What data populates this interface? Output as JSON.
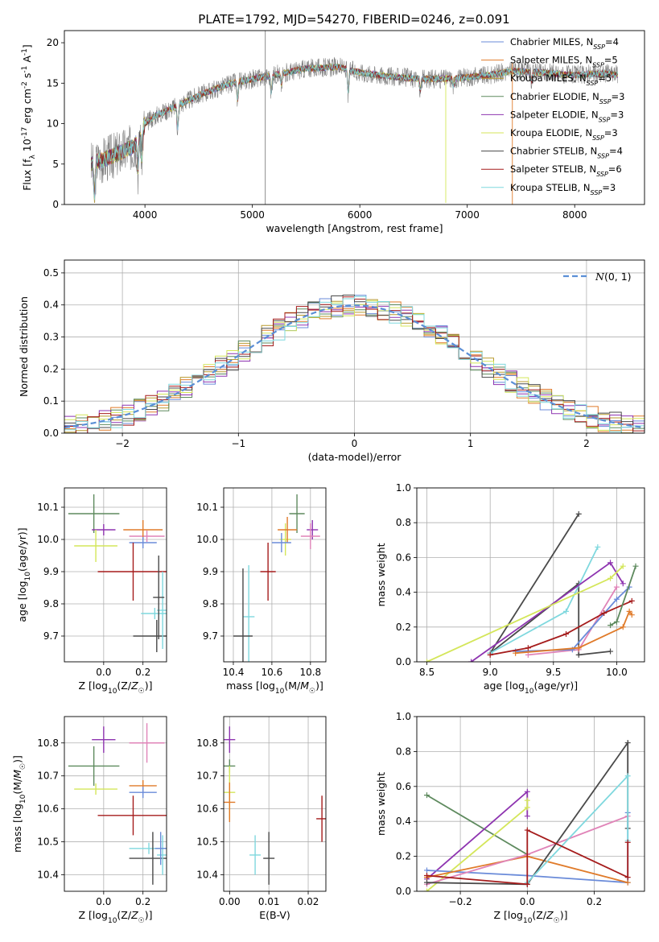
{
  "figure": {
    "title": "PLATE=1792, MJD=54270, FIBERID=0246, z=0.091"
  },
  "colors": {
    "Chabrier MILES": "#6a8bd9",
    "Salpeter MILES": "#e07b2a",
    "Kroupa MILES": "#b89a2f",
    "Chabrier ELODIE": "#5e8a5e",
    "Salpeter ELODIE": "#8e34b0",
    "Kroupa ELODIE": "#d4e65a",
    "Chabrier STELIB": "#4a4a4a",
    "Salpeter STELIB": "#a51c1c",
    "Kroupa STELIB": "#7fd8de",
    "extra_pink": "#e084b8",
    "observed": "#808080"
  },
  "chart_data": [
    {
      "id": "spectrum",
      "type": "line",
      "xlabel": "wavelength [Angstrom, rest frame]",
      "ylabel": "Flux [f_λ 10^-17 erg cm^-2 s^-1 A^-1]",
      "xlim": [
        3250,
        8650
      ],
      "ylim": [
        0,
        21.5
      ],
      "xticks": [
        4000,
        5000,
        6000,
        7000,
        8000
      ],
      "yticks": [
        0,
        5,
        10,
        15,
        20
      ],
      "legend_position": "right",
      "grid": false,
      "legend": [
        {
          "label": "Chabrier MILES, N",
          "sub": "SSP",
          "suffix": "=4",
          "color_key": "Chabrier MILES"
        },
        {
          "label": "Salpeter MILES, N",
          "sub": "SSP",
          "suffix": "=5",
          "color_key": "Salpeter MILES"
        },
        {
          "label": "Kroupa MILES, N",
          "sub": "SSP",
          "suffix": "=5",
          "color_key": "Kroupa MILES"
        },
        {
          "label": "Chabrier ELODIE, N",
          "sub": "SSP",
          "suffix": "=3",
          "color_key": "Chabrier ELODIE"
        },
        {
          "label": "Salpeter ELODIE, N",
          "sub": "SSP",
          "suffix": "=3",
          "color_key": "Salpeter ELODIE"
        },
        {
          "label": "Kroupa ELODIE, N",
          "sub": "SSP",
          "suffix": "=3",
          "color_key": "Kroupa ELODIE"
        },
        {
          "label": "Chabrier STELIB, N",
          "sub": "SSP",
          "suffix": "=4",
          "color_key": "Chabrier STELIB"
        },
        {
          "label": "Salpeter STELIB, N",
          "sub": "SSP",
          "suffix": "=6",
          "color_key": "Salpeter STELIB"
        },
        {
          "label": "Kroupa STELIB, N",
          "sub": "SSP",
          "suffix": "=3",
          "color_key": "Kroupa STELIB"
        }
      ],
      "continuum": {
        "wavelength": [
          3500,
          3700,
          3900,
          4000,
          4100,
          4300,
          4500,
          4800,
          5000,
          5200,
          5500,
          5800,
          6000,
          6300,
          6600,
          6900,
          7200,
          7420,
          7700,
          8000,
          8300,
          8400
        ],
        "flux": [
          5.0,
          6.0,
          7.2,
          10.0,
          11.0,
          12.2,
          13.5,
          15.0,
          15.5,
          16.0,
          16.8,
          17.0,
          16.3,
          15.8,
          15.5,
          15.6,
          16.0,
          16.5,
          16.3,
          16.0,
          16.2,
          16.0
        ]
      },
      "absorption_features": [
        {
          "wavelength": 3530,
          "depth": 4.5
        },
        {
          "wavelength": 3935,
          "depth": 4.0
        },
        {
          "wavelength": 3970,
          "depth": 3.5
        },
        {
          "wavelength": 4305,
          "depth": 3.0
        },
        {
          "wavelength": 4862,
          "depth": 2.5
        },
        {
          "wavelength": 5175,
          "depth": 2.2
        },
        {
          "wavelength": 5270,
          "depth": 1.5
        },
        {
          "wavelength": 5892,
          "depth": 3.0
        },
        {
          "wavelength": 6563,
          "depth": 1.5
        },
        {
          "wavelength": 6870,
          "depth": 1.0
        },
        {
          "wavelength": 7600,
          "depth": 1.2
        }
      ],
      "spikes": [
        {
          "wavelength": 5120,
          "flux_low": 0.0,
          "flux_high": 21.5,
          "color_key": "observed"
        },
        {
          "wavelength": 6800,
          "flux_low": 0.2,
          "flux_high": 16.0,
          "color_key": "Kroupa ELODIE"
        },
        {
          "wavelength": 7420,
          "flux_low": 0.0,
          "flux_high": 17.5,
          "color_key": "Salpeter MILES"
        }
      ]
    },
    {
      "id": "residual-histogram",
      "type": "bar",
      "xlabel": "(data-model)/error",
      "ylabel": "Normed distribution",
      "xlim": [
        -2.5,
        2.5
      ],
      "ylim": [
        0,
        0.54
      ],
      "xticks": [
        -2,
        -1,
        0,
        1,
        2
      ],
      "yticks": [
        0.0,
        0.1,
        0.2,
        0.3,
        0.4,
        0.5
      ],
      "grid": true,
      "bin_width": 0.1,
      "legend_position": "top-right",
      "gaussian_label": "N(0,1)",
      "series": [
        {
          "name": "Chabrier MILES",
          "seed": 1
        },
        {
          "name": "Salpeter MILES",
          "seed": 2
        },
        {
          "name": "Kroupa MILES",
          "seed": 3
        },
        {
          "name": "Chabrier ELODIE",
          "seed": 4
        },
        {
          "name": "Salpeter ELODIE",
          "seed": 5
        },
        {
          "name": "Kroupa ELODIE",
          "seed": 6
        },
        {
          "name": "Chabrier STELIB",
          "seed": 7
        },
        {
          "name": "Salpeter STELIB",
          "seed": 8
        },
        {
          "name": "Kroupa STELIB",
          "seed": 9
        }
      ]
    },
    {
      "id": "age-vs-z",
      "type": "scatter",
      "xlabel": "Z [log10(Z/Z☉)]",
      "ylabel": "age  [log10(age/yr)]",
      "xlim": [
        -0.2,
        0.32
      ],
      "ylim": [
        9.62,
        10.16
      ],
      "xticks": [
        0.0,
        0.2
      ],
      "yticks": [
        9.7,
        9.8,
        9.9,
        10.0,
        10.1
      ],
      "grid": true,
      "points": [
        {
          "x": -0.05,
          "y": 10.08,
          "xerr": 0.13,
          "yerr": 0.06,
          "color_key": "Chabrier ELODIE"
        },
        {
          "x": 0.0,
          "y": 10.03,
          "xerr": 0.06,
          "yerr": 0.0,
          "color_key": "Salpeter ELODIE"
        },
        {
          "x": -0.04,
          "y": 9.98,
          "xerr": 0.11,
          "yerr": 0.05,
          "color_key": "Kroupa ELODIE"
        },
        {
          "x": 0.22,
          "y": 10.01,
          "xerr": 0.09,
          "yerr": 0.0,
          "color_key": "extra_pink"
        },
        {
          "x": 0.2,
          "y": 10.03,
          "xerr": 0.1,
          "yerr": 0.03,
          "color_key": "Salpeter MILES"
        },
        {
          "x": 0.2,
          "y": 9.99,
          "xerr": 0.07,
          "yerr": 0.0,
          "color_key": "Chabrier MILES"
        },
        {
          "x": 0.15,
          "y": 9.9,
          "xerr": 0.18,
          "yerr": 0.09,
          "color_key": "Salpeter STELIB"
        },
        {
          "x": 0.26,
          "y": 9.77,
          "xerr": 0.07,
          "yerr": 0.0,
          "color_key": "Kroupa STELIB"
        },
        {
          "x": 0.27,
          "y": 9.7,
          "xerr": 0.12,
          "yerr": 0.05,
          "color_key": "Chabrier STELIB"
        },
        {
          "x": 0.3,
          "y": 9.78,
          "xerr": 0.0,
          "yerr": 0.12,
          "color_key": "Kroupa STELIB"
        },
        {
          "x": 0.28,
          "y": 9.82,
          "xerr": 0.0,
          "yerr": 0.13,
          "color_key": "Chabrier STELIB"
        }
      ]
    },
    {
      "id": "age-vs-mass",
      "type": "scatter",
      "xlabel": "mass [log10(M/M☉)]",
      "ylabel": "",
      "xlim": [
        10.35,
        10.88
      ],
      "ylim": [
        9.62,
        10.16
      ],
      "xticks": [
        10.4,
        10.6,
        10.8
      ],
      "yticks": [
        9.7,
        9.8,
        9.9,
        10.0,
        10.1
      ],
      "grid": true,
      "points": [
        {
          "x": 10.73,
          "y": 10.08,
          "xerr": 0.04,
          "yerr": 0.06,
          "color_key": "Chabrier ELODIE"
        },
        {
          "x": 10.81,
          "y": 10.03,
          "xerr": 0.02,
          "yerr": 0.03,
          "color_key": "Salpeter ELODIE"
        },
        {
          "x": 10.67,
          "y": 10.0,
          "xerr": 0.03,
          "yerr": 0.05,
          "color_key": "Kroupa ELODIE"
        },
        {
          "x": 10.8,
          "y": 10.01,
          "xerr": 0.05,
          "yerr": 0.04,
          "color_key": "extra_pink"
        },
        {
          "x": 10.68,
          "y": 10.03,
          "xerr": 0.05,
          "yerr": 0.04,
          "color_key": "Salpeter MILES"
        },
        {
          "x": 10.65,
          "y": 9.99,
          "xerr": 0.05,
          "yerr": 0.03,
          "color_key": "Chabrier MILES"
        },
        {
          "x": 10.58,
          "y": 9.9,
          "xerr": 0.04,
          "yerr": 0.09,
          "color_key": "Salpeter STELIB"
        },
        {
          "x": 10.48,
          "y": 9.76,
          "xerr": 0.03,
          "yerr": 0.16,
          "color_key": "Kroupa STELIB"
        },
        {
          "x": 10.45,
          "y": 9.7,
          "xerr": 0.05,
          "yerr": 0.21,
          "color_key": "Chabrier STELIB"
        }
      ]
    },
    {
      "id": "mass-weight-vs-age",
      "type": "line",
      "xlabel": "age  [log10(age/yr)]",
      "ylabel": "mass weight",
      "xlim": [
        8.42,
        10.22
      ],
      "ylim": [
        0,
        1
      ],
      "xticks": [
        8.5,
        9.0,
        9.5,
        10.0
      ],
      "yticks": [
        0.0,
        0.2,
        0.4,
        0.6,
        0.8,
        1.0
      ],
      "grid": true,
      "series": [
        {
          "color_key": "Chabrier STELIB",
          "x": [
            9.7,
            9.0,
            9.7,
            9.7,
            9.95
          ],
          "y": [
            0.85,
            0.05,
            0.45,
            0.04,
            0.06
          ]
        },
        {
          "color_key": "Kroupa STELIB",
          "x": [
            9.0,
            9.6,
            9.85
          ],
          "y": [
            0.05,
            0.29,
            0.66
          ]
        },
        {
          "color_key": "Salpeter ELODIE",
          "x": [
            8.85,
            9.95,
            10.05
          ],
          "y": [
            0.0,
            0.57,
            0.45
          ]
        },
        {
          "color_key": "Kroupa ELODIE",
          "x": [
            8.5,
            9.95,
            10.05
          ],
          "y": [
            0.0,
            0.48,
            0.55
          ]
        },
        {
          "color_key": "extra_pink",
          "x": [
            9.3,
            9.7,
            10.0
          ],
          "y": [
            0.04,
            0.07,
            0.43
          ]
        },
        {
          "color_key": "Chabrier MILES",
          "x": [
            9.2,
            9.65,
            10.0,
            10.1
          ],
          "y": [
            0.06,
            0.07,
            0.36,
            0.43
          ]
        },
        {
          "color_key": "Salpeter MILES",
          "x": [
            9.2,
            9.7,
            10.05,
            10.1,
            10.12
          ],
          "y": [
            0.05,
            0.08,
            0.2,
            0.29,
            0.27
          ]
        },
        {
          "color_key": "Salpeter STELIB",
          "x": [
            9.0,
            9.3,
            9.6,
            9.9,
            10.12
          ],
          "y": [
            0.04,
            0.08,
            0.16,
            0.28,
            0.35
          ]
        },
        {
          "color_key": "Chabrier ELODIE",
          "x": [
            9.95,
            10.0,
            10.15
          ],
          "y": [
            0.21,
            0.23,
            0.55
          ]
        }
      ]
    },
    {
      "id": "mass-vs-z",
      "type": "scatter",
      "xlabel": "Z [log10(Z/Z☉)]",
      "ylabel": "mass [log10(M/M☉)]",
      "xlim": [
        -0.2,
        0.32
      ],
      "ylim": [
        10.35,
        10.88
      ],
      "xticks": [
        0.0,
        0.2
      ],
      "yticks": [
        10.4,
        10.5,
        10.6,
        10.7,
        10.8
      ],
      "grid": true,
      "points": [
        {
          "x": -0.05,
          "y": 10.73,
          "xerr": 0.13,
          "yerr": 0.06,
          "color_key": "Chabrier ELODIE"
        },
        {
          "x": 0.0,
          "y": 10.81,
          "xerr": 0.06,
          "yerr": 0.04,
          "color_key": "Salpeter ELODIE"
        },
        {
          "x": -0.04,
          "y": 10.66,
          "xerr": 0.11,
          "yerr": 0.0,
          "color_key": "Kroupa ELODIE"
        },
        {
          "x": 0.22,
          "y": 10.8,
          "xerr": 0.09,
          "yerr": 0.06,
          "color_key": "extra_pink"
        },
        {
          "x": 0.2,
          "y": 10.67,
          "xerr": 0.07,
          "yerr": 0.0,
          "color_key": "Salpeter MILES"
        },
        {
          "x": 0.2,
          "y": 10.65,
          "xerr": 0.07,
          "yerr": 0.0,
          "color_key": "Chabrier MILES"
        },
        {
          "x": 0.15,
          "y": 10.58,
          "xerr": 0.18,
          "yerr": 0.06,
          "color_key": "Salpeter STELIB"
        },
        {
          "x": 0.23,
          "y": 10.48,
          "xerr": 0.1,
          "yerr": 0.0,
          "color_key": "Kroupa STELIB"
        },
        {
          "x": 0.25,
          "y": 10.45,
          "xerr": 0.12,
          "yerr": 0.08,
          "color_key": "Chabrier STELIB"
        },
        {
          "x": 0.3,
          "y": 10.46,
          "xerr": 0.0,
          "yerr": 0.06,
          "color_key": "Kroupa STELIB"
        },
        {
          "x": 0.29,
          "y": 10.48,
          "xerr": 0.0,
          "yerr": 0.05,
          "color_key": "Chabrier MILES"
        }
      ]
    },
    {
      "id": "mass-vs-ebv",
      "type": "scatter",
      "xlabel": "E(B-V)",
      "ylabel": "",
      "xlim": [
        -0.0015,
        0.0245
      ],
      "ylim": [
        10.35,
        10.88
      ],
      "xticks": [
        0.0,
        0.01,
        0.02
      ],
      "yticks": [
        10.4,
        10.5,
        10.6,
        10.7,
        10.8
      ],
      "grid": true,
      "points": [
        {
          "x": 0.0,
          "y": 10.81,
          "xerr": 0.0,
          "yerr": 0.04,
          "color_key": "Salpeter ELODIE"
        },
        {
          "x": 0.0,
          "y": 10.73,
          "xerr": 0.0,
          "yerr": 0.02,
          "color_key": "Chabrier ELODIE"
        },
        {
          "x": 0.0,
          "y": 10.65,
          "xerr": 0.0,
          "yerr": 0.08,
          "color_key": "Kroupa ELODIE"
        },
        {
          "x": 0.0,
          "y": 10.62,
          "xerr": 0.0,
          "yerr": 0.06,
          "color_key": "Salpeter MILES"
        },
        {
          "x": 0.0065,
          "y": 10.46,
          "xerr": 0.0,
          "yerr": 0.06,
          "color_key": "Kroupa STELIB"
        },
        {
          "x": 0.01,
          "y": 10.45,
          "xerr": 0.0,
          "yerr": 0.08,
          "color_key": "Chabrier STELIB"
        },
        {
          "x": 0.0235,
          "y": 10.57,
          "xerr": 0.0,
          "yerr": 0.07,
          "color_key": "Salpeter STELIB"
        }
      ]
    },
    {
      "id": "mass-weight-vs-z",
      "type": "line",
      "xlabel": "Z [log10(Z/Z☉)]",
      "ylabel": "mass weight",
      "xlim": [
        -0.33,
        0.35
      ],
      "ylim": [
        0,
        1
      ],
      "xticks": [
        -0.2,
        0.0,
        0.2
      ],
      "yticks": [
        0.0,
        0.2,
        0.4,
        0.6,
        0.8,
        1.0
      ],
      "grid": true,
      "series": [
        {
          "color_key": "Chabrier ELODIE",
          "x": [
            -0.3,
            0.0
          ],
          "y": [
            0.55,
            0.21
          ]
        },
        {
          "color_key": "Salpeter ELODIE",
          "x": [
            -0.3,
            0.0,
            0.0
          ],
          "y": [
            0.07,
            0.57,
            0.43
          ]
        },
        {
          "color_key": "Kroupa ELODIE",
          "x": [
            -0.3,
            0.0,
            0.0
          ],
          "y": [
            0.0,
            0.48,
            0.52
          ]
        },
        {
          "color_key": "Chabrier MILES",
          "x": [
            -0.3,
            0.0,
            0.3,
            0.3
          ],
          "y": [
            0.12,
            0.09,
            0.05,
            0.45
          ]
        },
        {
          "color_key": "Salpeter MILES",
          "x": [
            -0.3,
            0.0,
            0.3
          ],
          "y": [
            0.08,
            0.2,
            0.05
          ]
        },
        {
          "color_key": "extra_pink",
          "x": [
            -0.3,
            0.0,
            0.3
          ],
          "y": [
            0.04,
            0.21,
            0.43
          ]
        },
        {
          "color_key": "Chabrier STELIB",
          "x": [
            -0.3,
            0.0,
            0.3,
            0.3
          ],
          "y": [
            0.05,
            0.04,
            0.85,
            0.36
          ]
        },
        {
          "color_key": "Kroupa STELIB",
          "x": [
            0.0,
            0.3,
            0.3
          ],
          "y": [
            0.05,
            0.66,
            0.29
          ]
        },
        {
          "color_key": "Salpeter STELIB",
          "x": [
            -0.3,
            0.0,
            0.0,
            0.3,
            0.3
          ],
          "y": [
            0.09,
            0.04,
            0.35,
            0.08,
            0.28
          ]
        }
      ]
    }
  ]
}
